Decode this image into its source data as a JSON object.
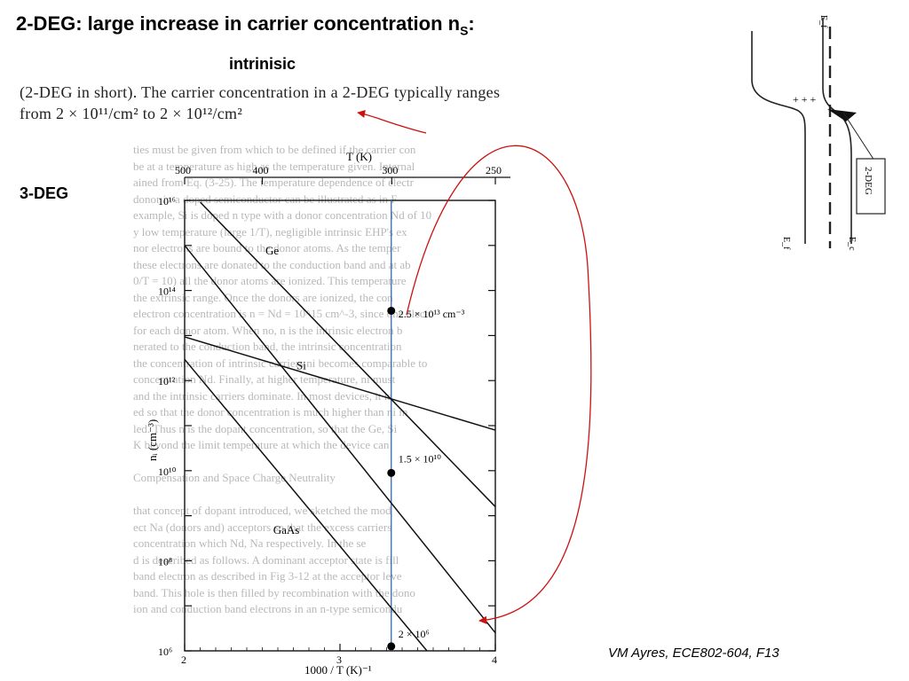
{
  "slide": {
    "title_main": "2-DEG: large increase in carrier concentration n",
    "title_sub": "S",
    "title_tail": ":",
    "intrinsic_label": "intrinisic",
    "scan_text_line1": "(2-DEG in short). The carrier concentration in a 2-DEG typically ranges",
    "scan_text_line2": "from 2 × 10¹¹/cm² to 2 × 10¹²/cm²",
    "deg3_label": "3-DEG",
    "credit": "VM Ayres, ECE802-604, F13"
  },
  "band_diagram": {
    "ef_label": "E_f",
    "ec_label": "E_c",
    "box_label": "2-DEG",
    "plus_signs": "+ + +"
  },
  "chart_data": {
    "type": "line",
    "xlabel": "1000 / T (K)⁻¹",
    "x_ticks": [
      "2",
      "3",
      "4"
    ],
    "top_axis_label": "T (K)",
    "top_ticks": [
      {
        "label": "500",
        "T": 500
      },
      {
        "label": "400",
        "T": 400
      },
      {
        "label": "300",
        "T": 300
      },
      {
        "label": "250",
        "T": 250
      }
    ],
    "ylabel": "nᵢ (cm⁻³)",
    "y_ticks": [
      "10⁶",
      "10⁸",
      "10¹⁰",
      "10¹²",
      "10¹⁴",
      "10¹⁶"
    ],
    "xlim": [
      2,
      4
    ],
    "ylim_log10": [
      6,
      16
    ],
    "series": [
      {
        "name": "Ge",
        "points": [
          [
            2.1,
            15.96
          ],
          [
            4.0,
            9.2
          ]
        ]
      },
      {
        "name": "Si",
        "points": [
          [
            2.0,
            12.97
          ],
          [
            4.0,
            10.9
          ]
        ]
      },
      {
        "name": "Si",
        "points": [
          [
            2.0,
            15.0
          ],
          [
            4.0,
            6.4
          ]
        ]
      },
      {
        "name": "GaAs",
        "points": [
          [
            2.0,
            12.47
          ],
          [
            3.56,
            6.0
          ]
        ]
      }
    ],
    "series_labels": [
      {
        "text": "Ge",
        "x": 2.52,
        "y": 14.8
      },
      {
        "text": "Si",
        "x": 2.72,
        "y": 12.25
      },
      {
        "text": "GaAs",
        "x": 2.57,
        "y": 8.6
      }
    ],
    "reference_line_x": 3.33,
    "annotations": [
      {
        "text": "2.5 × 10¹³ cm⁻³",
        "x": 3.33,
        "y": 13.4
      },
      {
        "text": "1.5 × 10¹⁰",
        "x": 3.33,
        "y": 10.18
      },
      {
        "text": "2 × 10⁶",
        "x": 3.33,
        "y": 6.3
      }
    ]
  },
  "ghost_lines": [
    "ties must be given from which to be defined if the carrier con",
    "be at a temperature as high as the temperature given. Internal",
    "ained from Eq. (3-25). The temperature dependence of electr",
    "donor in a doped semiconductor can be illustrated as in F",
    "example, Si is doped n type with a donor concentration Nd of 10",
    "y low temperature (large 1/T), negligible intrinsic EHP's ex",
    "nor electrons are bound to the donor atoms. As the temper",
    "these electrons are donated to the conduction band and at ab",
    "0/T = 10) all the donor atoms are ionized. This temperature",
    "the extrinsic range. Once the donors are ionized, the con",
    "electron concentration is n = Nd = 10^15 cm^-3, since one electr",
    "for each donor atom. When no, n is the intrinsic electron b",
    "nerated to the conduction band, the intrinsic concentration",
    "the concentration of intrinsic carriers ni becomes comparable to",
    "concentration Nd. Finally, at higher temperature, ni must",
    "and the intrinsic carriers dominate. In most devices, it is",
    "ed so that the donor concentration is much higher than ni in",
    "led. Thus n is the dopant concentration, so that the Ge, Si",
    "K beyond the limit temperature at which the device can",
    "",
    "Compensation and Space Charge Neutrality",
    "",
    "that concept of dopant introduced, we sketched the mod",
    "ect Na (donors and) acceptors so that the excess carriers",
    "concentration which Nd, Na respectively. In the se",
    "d is described as follows. A dominant acceptor state is fill",
    "band electron as described in Fig 3-12 at the acceptor leve",
    "band. This hole is then filled by recombination with the dono",
    "ion and conduction band electrons in an n-type semicondu"
  ]
}
